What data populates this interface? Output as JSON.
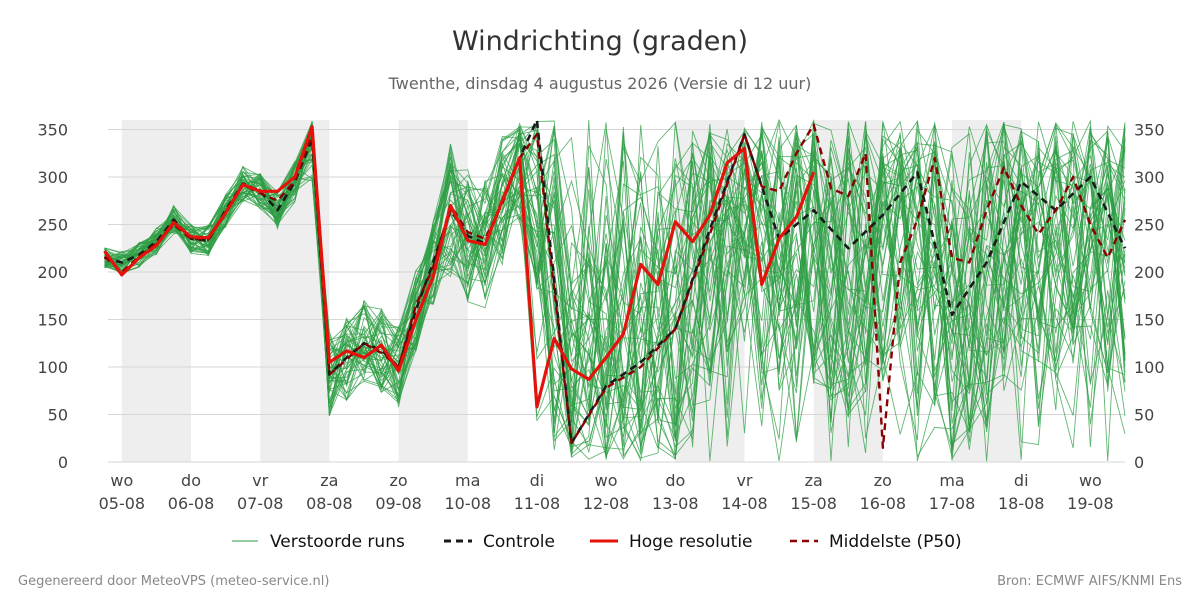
{
  "chart_data": {
    "type": "line",
    "title": "Windrichting (graden)",
    "subtitle": "Twenthe, dinsdag  4 augustus 2026 (Versie di 12 uur)",
    "ylim": [
      0,
      360
    ],
    "y_ticks": [
      0,
      50,
      100,
      150,
      200,
      250,
      300,
      350
    ],
    "x_range": [
      -0.2,
      14.5
    ],
    "grid": "horizontal",
    "weekend_shading": [
      [
        0,
        1
      ],
      [
        2,
        3
      ],
      [
        4,
        5
      ],
      [
        8,
        9
      ],
      [
        10,
        11
      ],
      [
        12,
        13
      ]
    ],
    "x_ticks": [
      {
        "pos": 0,
        "day": "wo",
        "date": "05-08"
      },
      {
        "pos": 1,
        "day": "do",
        "date": "06-08"
      },
      {
        "pos": 2,
        "day": "vr",
        "date": "07-08"
      },
      {
        "pos": 3,
        "day": "za",
        "date": "08-08"
      },
      {
        "pos": 4,
        "day": "zo",
        "date": "09-08"
      },
      {
        "pos": 5,
        "day": "ma",
        "date": "10-08"
      },
      {
        "pos": 6,
        "day": "di",
        "date": "11-08"
      },
      {
        "pos": 7,
        "day": "wo",
        "date": "12-08"
      },
      {
        "pos": 8,
        "day": "do",
        "date": "13-08"
      },
      {
        "pos": 9,
        "day": "vr",
        "date": "14-08"
      },
      {
        "pos": 10,
        "day": "za",
        "date": "15-08"
      },
      {
        "pos": 11,
        "day": "zo",
        "date": "16-08"
      },
      {
        "pos": 12,
        "day": "ma",
        "date": "17-08"
      },
      {
        "pos": 13,
        "day": "di",
        "date": "18-08"
      },
      {
        "pos": 14,
        "day": "wo",
        "date": "19-08"
      }
    ],
    "x_units": "days from 05-08 00 UTC",
    "ensemble_members": 50,
    "series": [
      {
        "name": "Controle",
        "color": "#1a1a1a",
        "style": "dashed",
        "x": [
          -0.25,
          0,
          0.25,
          0.5,
          0.75,
          1,
          1.25,
          1.5,
          1.75,
          2,
          2.25,
          2.5,
          2.75,
          3,
          3.25,
          3.5,
          3.75,
          4,
          4.25,
          4.5,
          4.75,
          5,
          5.25,
          5.5,
          5.75,
          6,
          6.5,
          7,
          7.5,
          8,
          8.5,
          9,
          9.5,
          10,
          10.5,
          11,
          11.5,
          12,
          12.5,
          13,
          13.5,
          14,
          14.5
        ],
        "values": [
          215,
          210,
          218,
          232,
          255,
          235,
          233,
          265,
          293,
          285,
          265,
          295,
          340,
          92,
          110,
          125,
          118,
          100,
          160,
          210,
          265,
          238,
          230,
          275,
          320,
          360,
          20,
          80,
          105,
          140,
          245,
          345,
          235,
          265,
          225,
          260,
          305,
          155,
          210,
          295,
          265,
          300,
          225
        ]
      },
      {
        "name": "Hoge resolutie",
        "color": "#e3120b",
        "style": "solid",
        "x": [
          -0.25,
          0,
          0.25,
          0.5,
          0.75,
          1,
          1.25,
          1.5,
          1.75,
          2,
          2.25,
          2.5,
          2.75,
          3,
          3.25,
          3.5,
          3.75,
          4,
          4.25,
          4.5,
          4.75,
          5,
          5.25,
          5.5,
          5.75,
          6,
          6.25,
          6.5,
          6.75,
          7,
          7.25,
          7.5,
          7.75,
          8,
          8.25,
          8.5,
          8.75,
          9,
          9.25,
          9.5,
          9.75,
          10
        ],
        "values": [
          222,
          197,
          215,
          228,
          252,
          237,
          236,
          262,
          292,
          285,
          285,
          300,
          353,
          105,
          117,
          110,
          123,
          96,
          150,
          195,
          270,
          233,
          229,
          275,
          320,
          58,
          130,
          98,
          87,
          110,
          135,
          208,
          187,
          253,
          232,
          260,
          315,
          330,
          187,
          235,
          258,
          305
        ]
      },
      {
        "name": "Middelste (P50)",
        "color": "#8b0000",
        "style": "dashed",
        "x": [
          -0.25,
          0,
          0.25,
          0.5,
          0.75,
          1,
          1.25,
          1.5,
          1.75,
          2,
          2.25,
          2.5,
          2.75,
          3,
          3.25,
          3.5,
          3.75,
          4,
          4.25,
          4.5,
          4.75,
          5,
          5.25,
          5.5,
          5.75,
          6,
          6.5,
          7,
          7.5,
          8,
          8.5,
          9,
          9.25,
          9.5,
          9.75,
          10,
          10.25,
          10.5,
          10.75,
          11,
          11.25,
          11.5,
          11.75,
          12,
          12.25,
          12.5,
          12.75,
          13,
          13.25,
          13.5,
          13.75,
          14,
          14.25,
          14.5
        ],
        "values": [
          216,
          200,
          216,
          230,
          250,
          235,
          234,
          263,
          292,
          283,
          275,
          296,
          344,
          92,
          108,
          125,
          115,
          100,
          165,
          205,
          270,
          242,
          235,
          272,
          320,
          345,
          20,
          78,
          100,
          140,
          240,
          345,
          290,
          285,
          325,
          355,
          288,
          280,
          325,
          15,
          210,
          255,
          320,
          215,
          210,
          265,
          310,
          270,
          240,
          265,
          300,
          250,
          215,
          255
        ]
      },
      {
        "name": "Verstoorde runs",
        "color": "#2e9e44",
        "style": "thin"
      }
    ]
  },
  "legend": {
    "position": "bottom",
    "items": [
      {
        "label": "Verstoorde runs",
        "color": "#2e9e44",
        "style": "thin"
      },
      {
        "label": "Controle",
        "color": "#1a1a1a",
        "style": "dashed"
      },
      {
        "label": "Hoge resolutie",
        "color": "#e3120b",
        "style": "solid"
      },
      {
        "label": "Middelste (P50)",
        "color": "#8b0000",
        "style": "dashed"
      }
    ]
  },
  "footer": {
    "left": "Gegenereerd door MeteoVPS (meteo-service.nl)",
    "right": "Bron: ECMWF AIFS/KNMI Ens"
  }
}
